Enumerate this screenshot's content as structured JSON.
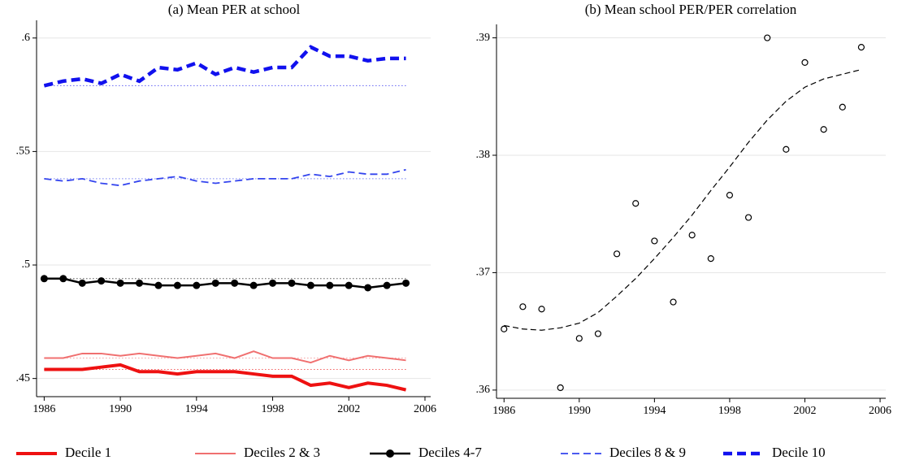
{
  "chart_data": [
    {
      "type": "line",
      "title": "(a) Mean PER at school",
      "x": [
        1986,
        1987,
        1988,
        1989,
        1990,
        1991,
        1992,
        1993,
        1994,
        1995,
        1996,
        1997,
        1998,
        1999,
        2000,
        2001,
        2002,
        2003,
        2004,
        2005
      ],
      "series": [
        {
          "name": "Decile 1",
          "color": "#ee1111",
          "values": [
            0.454,
            0.454,
            0.454,
            0.455,
            0.456,
            0.453,
            0.453,
            0.452,
            0.453,
            0.453,
            0.453,
            0.452,
            0.451,
            0.451,
            0.447,
            0.448,
            0.446,
            0.448,
            0.447,
            0.445
          ]
        },
        {
          "name": "Deciles 2 & 3",
          "color": "#f07070",
          "values": [
            0.459,
            0.459,
            0.461,
            0.461,
            0.46,
            0.461,
            0.46,
            0.459,
            0.46,
            0.461,
            0.459,
            0.462,
            0.459,
            0.459,
            0.457,
            0.46,
            0.458,
            0.46,
            0.459,
            0.458
          ]
        },
        {
          "name": "Deciles 4-7",
          "color": "#000000",
          "values": [
            0.494,
            0.494,
            0.492,
            0.493,
            0.492,
            0.492,
            0.491,
            0.491,
            0.491,
            0.492,
            0.492,
            0.491,
            0.492,
            0.492,
            0.491,
            0.491,
            0.491,
            0.49,
            0.491,
            0.492
          ]
        },
        {
          "name": "Deciles 8 & 9",
          "color": "#3344ee",
          "values": [
            0.538,
            0.537,
            0.538,
            0.536,
            0.535,
            0.537,
            0.538,
            0.539,
            0.537,
            0.536,
            0.537,
            0.538,
            0.538,
            0.538,
            0.54,
            0.539,
            0.541,
            0.54,
            0.54,
            0.542
          ]
        },
        {
          "name": "Decile 10",
          "color": "#1111ee",
          "values": [
            0.579,
            0.581,
            0.582,
            0.58,
            0.584,
            0.581,
            0.587,
            0.586,
            0.589,
            0.584,
            0.587,
            0.585,
            0.587,
            0.587,
            0.596,
            0.592,
            0.592,
            0.59,
            0.591,
            0.591
          ]
        }
      ],
      "xlim": [
        1985.6,
        2006.3
      ],
      "xticks": [
        1986,
        1990,
        1994,
        1998,
        2002,
        2006
      ],
      "ylim": [
        0.442,
        0.606
      ],
      "yticks": [
        {
          "value": 0.45,
          "label": ".45"
        },
        {
          "value": 0.5,
          "label": ".5"
        },
        {
          "value": 0.55,
          "label": ".55"
        },
        {
          "value": 0.6,
          "label": ".6"
        }
      ],
      "grid": true
    },
    {
      "type": "scatter",
      "title": "(b) Mean school PER/PER correlation",
      "x": [
        1986,
        1987,
        1988,
        1989,
        1990,
        1991,
        1992,
        1993,
        1994,
        1995,
        1996,
        1997,
        1998,
        1999,
        2000,
        2001,
        2002,
        2003,
        2004,
        2005
      ],
      "values": [
        0.3652,
        0.3671,
        0.3669,
        0.3602,
        0.3644,
        0.3648,
        0.3716,
        0.3759,
        0.3727,
        0.3675,
        0.3732,
        0.3712,
        0.3766,
        0.3747,
        0.39,
        0.3805,
        0.3879,
        0.3822,
        0.3841,
        0.3892
      ],
      "fit_x": [
        1986,
        1987,
        1988,
        1989,
        1990,
        1991,
        1992,
        1993,
        1994,
        1995,
        1996,
        1997,
        1998,
        1999,
        2000,
        2001,
        2002,
        2003,
        2004,
        2005
      ],
      "fit_values": [
        0.3655,
        0.3652,
        0.3651,
        0.3653,
        0.3657,
        0.3666,
        0.368,
        0.3695,
        0.3712,
        0.373,
        0.3749,
        0.377,
        0.379,
        0.3811,
        0.383,
        0.3846,
        0.3858,
        0.3865,
        0.3869,
        0.3873
      ],
      "color": "#000000",
      "xlim": [
        1985.6,
        2006.3
      ],
      "xticks": [
        1986,
        1990,
        1994,
        1998,
        2002,
        2006
      ],
      "ylim": [
        0.3593,
        0.3908
      ],
      "yticks": [
        {
          "value": 0.36,
          "label": ".36"
        },
        {
          "value": 0.37,
          "label": ".37"
        },
        {
          "value": 0.38,
          "label": ".38"
        },
        {
          "value": 0.39,
          "label": ".39"
        }
      ],
      "grid": true
    }
  ]
}
